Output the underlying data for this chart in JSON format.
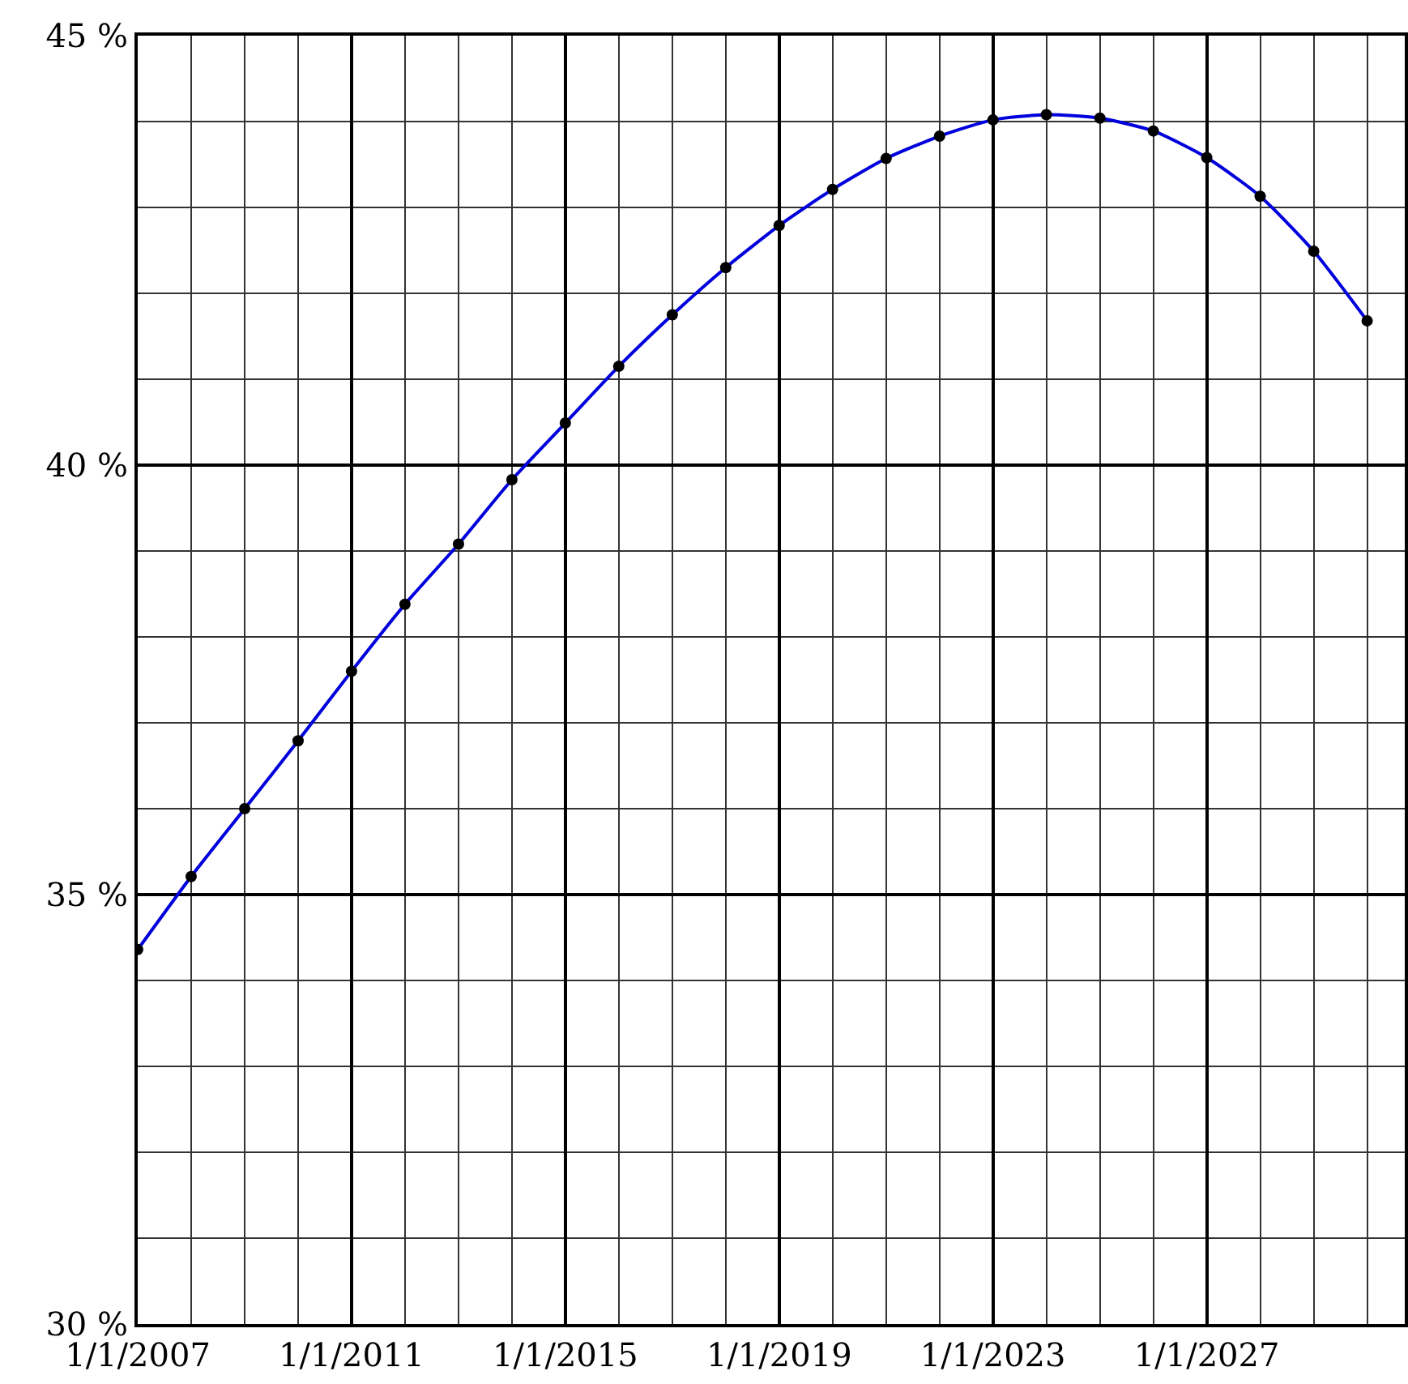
{
  "chart_data": {
    "type": "line",
    "x": [
      "2007-01-01",
      "2008-01-01",
      "2009-01-01",
      "2010-01-01",
      "2011-01-01",
      "2012-01-01",
      "2013-01-01",
      "2014-01-01",
      "2015-01-01",
      "2016-01-01",
      "2017-01-01",
      "2018-01-01",
      "2019-01-01",
      "2020-01-01",
      "2021-01-01",
      "2022-01-01",
      "2023-01-01",
      "2024-01-01",
      "2025-01-01",
      "2026-01-01",
      "2027-01-01",
      "2028-01-01",
      "2029-01-01",
      "2030-01-01"
    ],
    "series": [
      {
        "color": "#0000dd",
        "values": [
          34.36,
          35.21,
          36.0,
          36.79,
          37.6,
          38.38,
          39.08,
          39.83,
          40.49,
          41.15,
          41.75,
          42.3,
          42.79,
          43.21,
          43.57,
          43.83,
          44.02,
          44.08,
          44.04,
          43.89,
          43.58,
          43.13,
          42.49,
          41.68
        ]
      }
    ],
    "marker": "circle",
    "line_style": "solid",
    "grid": true,
    "xlim": [
      "2007-01-01",
      "2030-09-15"
    ],
    "xticks": [
      {
        "value": "2007-01-01",
        "label": "1/1/2007"
      },
      {
        "value": "2011-01-01",
        "label": "1/1/2011"
      },
      {
        "value": "2015-01-01",
        "label": "1/1/2015"
      },
      {
        "value": "2019-01-01",
        "label": "1/1/2019"
      },
      {
        "value": "2023-01-01",
        "label": "1/1/2023"
      },
      {
        "value": "2027-01-01",
        "label": "1/1/2027"
      }
    ],
    "ylim": [
      30,
      45
    ],
    "yticks": [
      {
        "value": 30,
        "label": "30 %"
      },
      {
        "value": 35,
        "label": "35 %"
      },
      {
        "value": 40,
        "label": "40 %"
      },
      {
        "value": 45,
        "label": "45 %"
      }
    ]
  }
}
